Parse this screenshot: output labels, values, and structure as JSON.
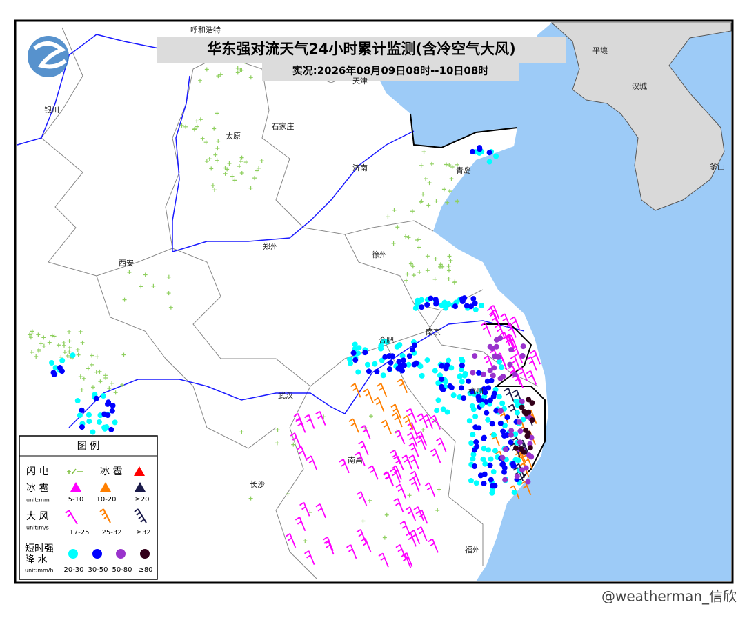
{
  "header": {
    "title": "华东强对流天气24小时累计监测(含冷空气大风)",
    "subtitle": "实况:2026年08月09日08时--10日08时"
  },
  "cities": [
    "呼和浩特",
    "银川",
    "太原",
    "石家庄",
    "天津",
    "济南",
    "青岛",
    "郑州",
    "西安",
    "徐州",
    "合肥",
    "南京",
    "武汉",
    "南昌",
    "长沙",
    "杭州",
    "福州",
    "平壤",
    "汉城",
    "釜山"
  ],
  "legend": {
    "title": "图 例",
    "lightning": "闪 电",
    "hail_marker": "冰 雹",
    "hail": {
      "label": "冰 雹",
      "unit": "unit:mm",
      "classes": [
        "5-10",
        "10-20",
        "≥20"
      ]
    },
    "wind": {
      "label": "大 风",
      "unit": "unit:m/s",
      "classes": [
        "17-25",
        "25-32",
        "≥32"
      ]
    },
    "rain": {
      "label": [
        "短时强",
        "降 水"
      ],
      "unit": "unit:mm/h",
      "classes": [
        "20-30",
        "30-50",
        "50-80",
        "≥80"
      ]
    }
  },
  "watermark": "@weatherman_信欣"
}
